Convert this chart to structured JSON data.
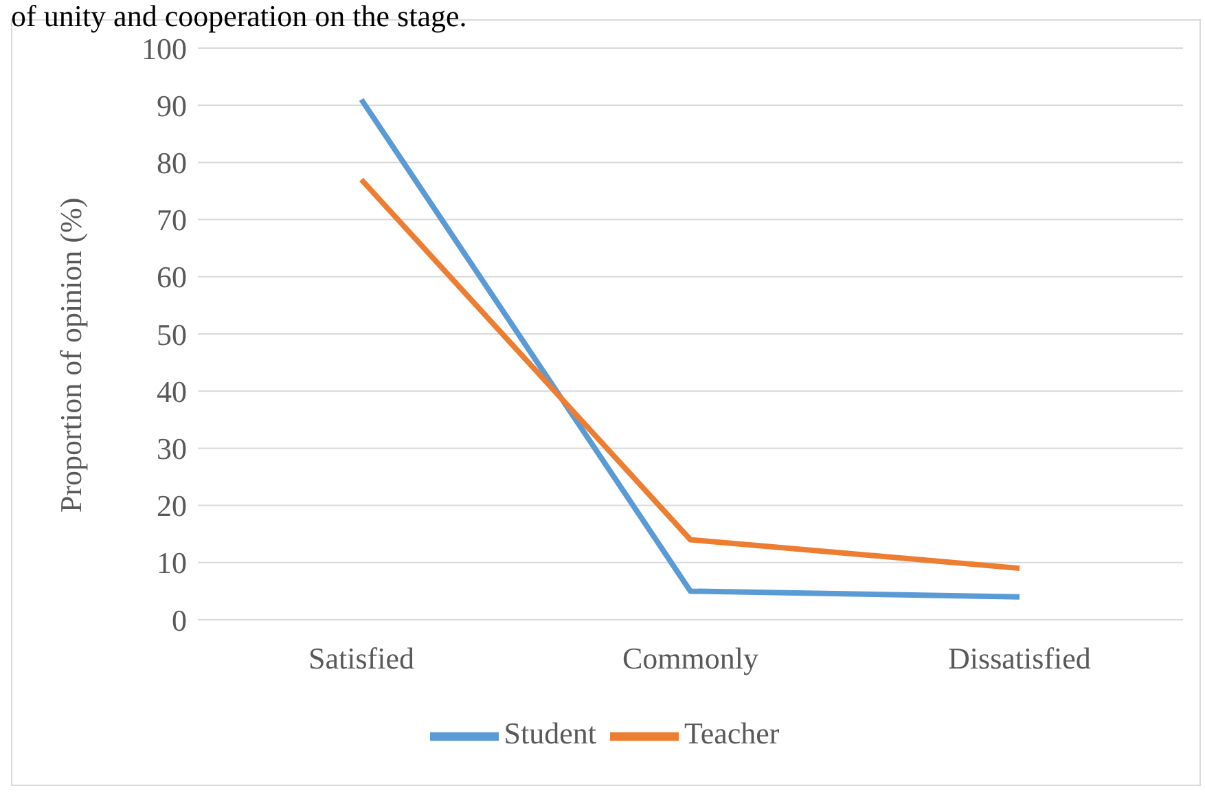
{
  "chart_data": {
    "type": "line",
    "ylabel": "Proportion of opinion (%)",
    "annotations": [
      "of unity and cooperation on the stage."
    ],
    "categories": [
      "Satisfied",
      "Commonly",
      "Dissatisfied"
    ],
    "series": [
      {
        "name": "Student",
        "color": "#5b9bd5",
        "values": [
          91,
          5,
          4
        ]
      },
      {
        "name": "Teacher",
        "color": "#ed7d31",
        "values": [
          77,
          14,
          9
        ]
      }
    ],
    "ylim": [
      0,
      100
    ],
    "yticks": [
      0,
      10,
      20,
      30,
      40,
      50,
      60,
      70,
      80,
      90,
      100
    ],
    "grid": "y",
    "legend": "bottom",
    "marker": "none",
    "line_style": "solid"
  }
}
